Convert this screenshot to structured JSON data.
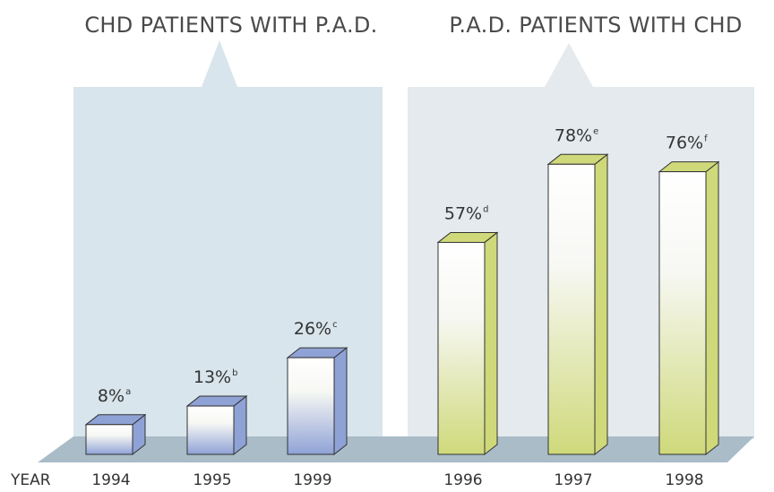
{
  "chart_data": [
    {
      "type": "bar",
      "title": "CHD PATIENTS WITH P.A.D.",
      "x_label": "YEAR",
      "categories": [
        "1994",
        "1995",
        "1999"
      ],
      "values": [
        8,
        13,
        26
      ],
      "value_labels": [
        "8%",
        "13%",
        "26%"
      ],
      "footnotes": [
        "a",
        "b",
        "c"
      ],
      "color": "#8fa2d6",
      "panel_color": "#d8e5ec"
    },
    {
      "type": "bar",
      "title": "P.A.D. PATIENTS WITH CHD",
      "categories": [
        "1996",
        "1997",
        "1998"
      ],
      "values": [
        57,
        78,
        76
      ],
      "value_labels": [
        "57%",
        "78%",
        "76%"
      ],
      "footnotes": [
        "d",
        "e",
        "f"
      ],
      "color": "#cfd97a",
      "panel_color": "#e4eaee"
    }
  ]
}
